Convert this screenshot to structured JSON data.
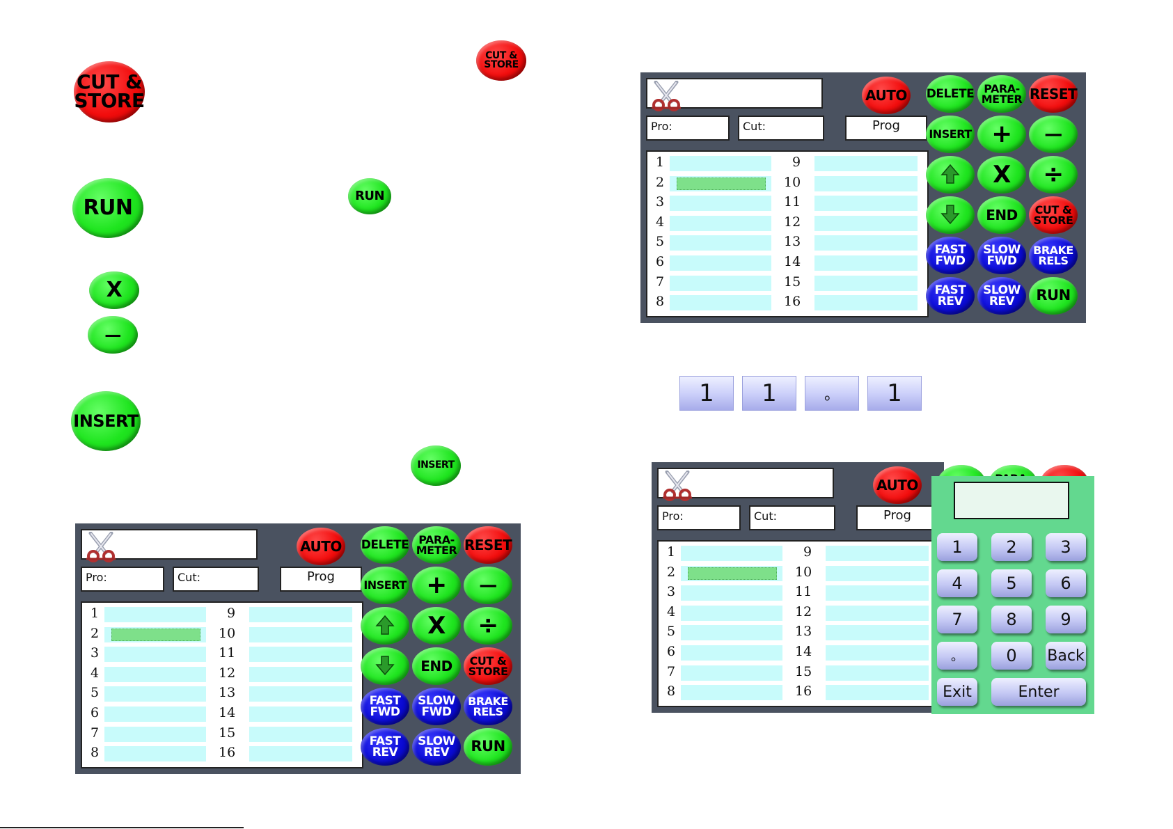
{
  "icons": {
    "cut_store_small": "CUT &\nSTORE",
    "cut_store_large": "CUT &\nSTORE",
    "run_large": "RUN",
    "run_small": "RUN",
    "multiply": "X",
    "minus": "—",
    "insert_large": "INSERT",
    "insert_small": "INSERT"
  },
  "screen": {
    "pro_label": "Pro:",
    "cut_label": "Cut:",
    "prog_label": "Prog",
    "rows_left": [
      "1",
      "2",
      "3",
      "4",
      "5",
      "6",
      "7",
      "8"
    ],
    "rows_right": [
      "9",
      "10",
      "11",
      "12",
      "13",
      "14",
      "15",
      "16"
    ],
    "buttons": {
      "auto": "AUTO",
      "delete": "DELETE",
      "parameter": "PARA-\nMETER",
      "reset": "RESET",
      "insert": "INSERT",
      "plus": "+",
      "minus": "—",
      "up": "up-arrow-icon",
      "multiply": "X",
      "divide": "÷",
      "down": "down-arrow-icon",
      "end": "END",
      "cut_store": "CUT &\nSTORE",
      "fast_fwd": "FAST\nFWD",
      "slow_fwd": "SLOW\nFWD",
      "brake_rels": "BRAKE\nRELS",
      "fast_rev": "FAST\nREV",
      "slow_rev": "SLOW\nREV",
      "run": "RUN"
    }
  },
  "display_digits": [
    "1",
    "1",
    "。",
    "1"
  ],
  "keypad": {
    "keys": [
      "1",
      "2",
      "3",
      "4",
      "5",
      "6",
      "7",
      "8",
      "9",
      "。",
      "0",
      "Back"
    ],
    "exit": "Exit",
    "enter": "Enter"
  },
  "colors": {
    "green": "#1fe51f",
    "red": "#f20d0d",
    "blue": "#0b0bd6",
    "panel": "#4a5260",
    "cell": "#c8fbfb",
    "keypad_bg": "#63d88f"
  }
}
